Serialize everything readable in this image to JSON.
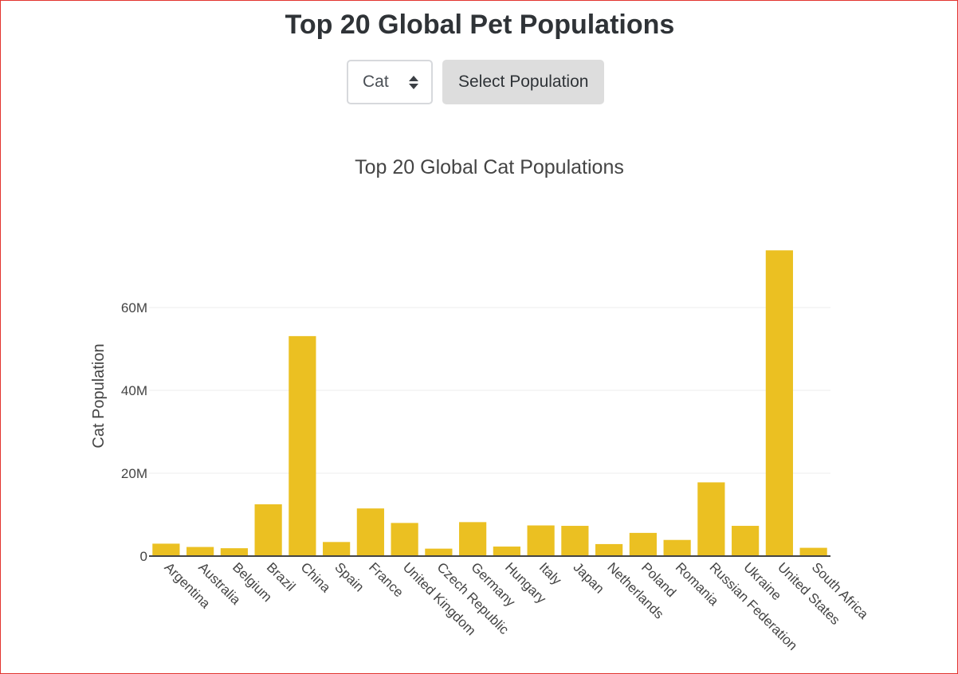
{
  "header": {
    "title": "Top 20 Global Pet Populations"
  },
  "controls": {
    "select_value": "Cat",
    "button_label": "Select Population"
  },
  "colors": {
    "bar": "#ebc022",
    "grid": "#eeeeee",
    "axis": "#444444",
    "text": "#444444"
  },
  "chart_data": {
    "type": "bar",
    "title": "Top 20 Global Cat Populations",
    "xlabel": "",
    "ylabel": "Cat Population",
    "ylim": [
      0,
      75000000
    ],
    "yticks": [
      0,
      20000000,
      40000000,
      60000000
    ],
    "ytick_labels": [
      "0",
      "20M",
      "40M",
      "60M"
    ],
    "grid": true,
    "categories": [
      "Argentina",
      "Australia",
      "Belgium",
      "Brazil",
      "China",
      "Spain",
      "France",
      "United Kingdom",
      "Czech Republic",
      "Germany",
      "Hungary",
      "Italy",
      "Japan",
      "Netherlands",
      "Poland",
      "Romania",
      "Russian Federation",
      "Ukraine",
      "United States",
      "South Africa"
    ],
    "values": [
      3000000,
      2200000,
      1900000,
      12500000,
      53100000,
      3400000,
      11500000,
      8000000,
      1800000,
      8200000,
      2300000,
      7400000,
      7300000,
      2900000,
      5600000,
      3900000,
      17800000,
      7300000,
      73800000,
      2000000
    ]
  }
}
